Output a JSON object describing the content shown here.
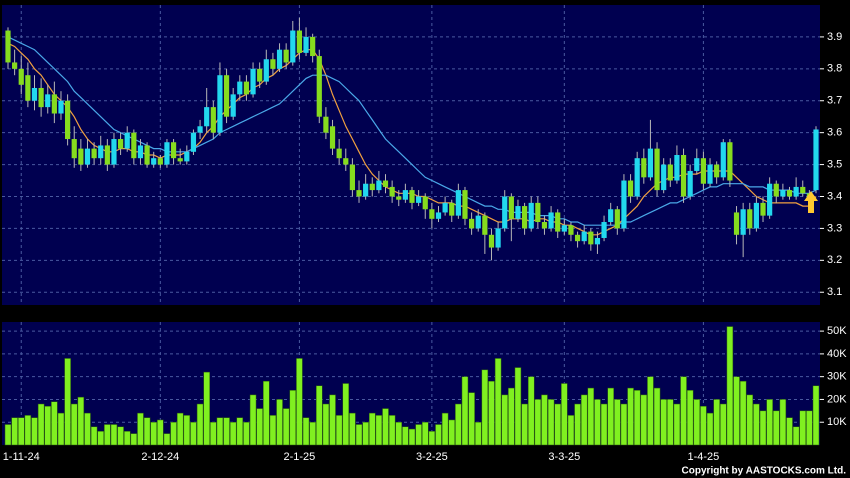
{
  "chart_data": {
    "type": "candlestick",
    "up_color": "#22d8ee",
    "down_color": "#86dc1e",
    "grid": true,
    "categories": [
      null,
      null,
      "1-11-24",
      null,
      null,
      null,
      null,
      null,
      null,
      null,
      null,
      null,
      null,
      null,
      null,
      null,
      null,
      null,
      null,
      null,
      null,
      null,
      null,
      "2-12-24",
      null,
      null,
      null,
      null,
      null,
      null,
      null,
      null,
      null,
      null,
      null,
      null,
      null,
      null,
      null,
      null,
      null,
      null,
      null,
      null,
      "2-1-25",
      null,
      null,
      null,
      null,
      null,
      null,
      null,
      null,
      null,
      null,
      null,
      null,
      null,
      null,
      null,
      null,
      null,
      null,
      null,
      "3-2-25",
      null,
      null,
      null,
      null,
      null,
      null,
      null,
      null,
      null,
      null,
      null,
      null,
      null,
      null,
      null,
      null,
      null,
      null,
      null,
      "3-3-25",
      null,
      null,
      null,
      null,
      null,
      null,
      null,
      null,
      null,
      null,
      null,
      null,
      null,
      null,
      null,
      null,
      null,
      null,
      null,
      null,
      "1-4-25",
      null,
      null,
      null,
      null,
      null,
      null,
      null,
      null,
      null,
      null,
      null,
      null,
      null,
      null,
      null,
      null,
      null
    ],
    "ohlc": [
      [
        3.92,
        3.93,
        3.8,
        3.82
      ],
      [
        3.82,
        3.86,
        3.78,
        3.8
      ],
      [
        3.8,
        3.84,
        3.72,
        3.75
      ],
      [
        3.78,
        3.82,
        3.68,
        3.7
      ],
      [
        3.7,
        3.78,
        3.67,
        3.74
      ],
      [
        3.74,
        3.77,
        3.65,
        3.68
      ],
      [
        3.68,
        3.75,
        3.66,
        3.72
      ],
      [
        3.72,
        3.76,
        3.63,
        3.66
      ],
      [
        3.66,
        3.73,
        3.64,
        3.7
      ],
      [
        3.7,
        3.72,
        3.56,
        3.58
      ],
      [
        3.58,
        3.62,
        3.49,
        3.52
      ],
      [
        3.55,
        3.58,
        3.48,
        3.5
      ],
      [
        3.5,
        3.58,
        3.49,
        3.55
      ],
      [
        3.55,
        3.57,
        3.5,
        3.52
      ],
      [
        3.52,
        3.59,
        3.5,
        3.56
      ],
      [
        3.56,
        3.58,
        3.48,
        3.5
      ],
      [
        3.5,
        3.6,
        3.49,
        3.58
      ],
      [
        3.58,
        3.6,
        3.53,
        3.55
      ],
      [
        3.55,
        3.62,
        3.54,
        3.6
      ],
      [
        3.6,
        3.61,
        3.5,
        3.52
      ],
      [
        3.52,
        3.58,
        3.5,
        3.56
      ],
      [
        3.56,
        3.57,
        3.49,
        3.5
      ],
      [
        3.5,
        3.54,
        3.49,
        3.52
      ],
      [
        3.52,
        3.53,
        3.49,
        3.5
      ],
      [
        3.5,
        3.58,
        3.49,
        3.57
      ],
      [
        3.57,
        3.58,
        3.5,
        3.52
      ],
      [
        3.52,
        3.55,
        3.5,
        3.51
      ],
      [
        3.51,
        3.56,
        3.5,
        3.54
      ],
      [
        3.54,
        3.61,
        3.53,
        3.6
      ],
      [
        3.6,
        3.64,
        3.58,
        3.62
      ],
      [
        3.62,
        3.74,
        3.6,
        3.68
      ],
      [
        3.68,
        3.7,
        3.58,
        3.6
      ],
      [
        3.6,
        3.82,
        3.59,
        3.78
      ],
      [
        3.78,
        3.8,
        3.63,
        3.65
      ],
      [
        3.65,
        3.74,
        3.64,
        3.72
      ],
      [
        3.72,
        3.78,
        3.7,
        3.76
      ],
      [
        3.76,
        3.78,
        3.7,
        3.72
      ],
      [
        3.72,
        3.82,
        3.71,
        3.8
      ],
      [
        3.8,
        3.82,
        3.74,
        3.76
      ],
      [
        3.76,
        3.86,
        3.75,
        3.83
      ],
      [
        3.83,
        3.85,
        3.78,
        3.8
      ],
      [
        3.8,
        3.88,
        3.79,
        3.86
      ],
      [
        3.86,
        3.88,
        3.8,
        3.82
      ],
      [
        3.82,
        3.95,
        3.81,
        3.92
      ],
      [
        3.92,
        3.96,
        3.83,
        3.85
      ],
      [
        3.85,
        3.93,
        3.84,
        3.9
      ],
      [
        3.9,
        3.91,
        3.82,
        3.84
      ],
      [
        3.84,
        3.86,
        3.63,
        3.65
      ],
      [
        3.65,
        3.68,
        3.58,
        3.6
      ],
      [
        3.62,
        3.64,
        3.53,
        3.55
      ],
      [
        3.55,
        3.58,
        3.5,
        3.52
      ],
      [
        3.52,
        3.55,
        3.48,
        3.5
      ],
      [
        3.5,
        3.52,
        3.4,
        3.42
      ],
      [
        3.42,
        3.45,
        3.38,
        3.4
      ],
      [
        3.4,
        3.47,
        3.39,
        3.44
      ],
      [
        3.44,
        3.46,
        3.4,
        3.42
      ],
      [
        3.42,
        3.48,
        3.41,
        3.45
      ],
      [
        3.45,
        3.47,
        3.41,
        3.43
      ],
      [
        3.43,
        3.45,
        3.38,
        3.4
      ],
      [
        3.4,
        3.42,
        3.37,
        3.39
      ],
      [
        3.39,
        3.44,
        3.38,
        3.42
      ],
      [
        3.42,
        3.43,
        3.36,
        3.38
      ],
      [
        3.38,
        3.42,
        3.37,
        3.4
      ],
      [
        3.4,
        3.41,
        3.33,
        3.36
      ],
      [
        3.36,
        3.38,
        3.3,
        3.33
      ],
      [
        3.33,
        3.37,
        3.32,
        3.35
      ],
      [
        3.35,
        3.4,
        3.34,
        3.38
      ],
      [
        3.38,
        3.39,
        3.32,
        3.34
      ],
      [
        3.34,
        3.44,
        3.33,
        3.42
      ],
      [
        3.42,
        3.43,
        3.31,
        3.33
      ],
      [
        3.33,
        3.35,
        3.28,
        3.3
      ],
      [
        3.3,
        3.36,
        3.29,
        3.34
      ],
      [
        3.34,
        3.35,
        3.22,
        3.28
      ],
      [
        3.28,
        3.3,
        3.2,
        3.24
      ],
      [
        3.24,
        3.32,
        3.23,
        3.3
      ],
      [
        3.3,
        3.42,
        3.29,
        3.4
      ],
      [
        3.4,
        3.41,
        3.26,
        3.33
      ],
      [
        3.33,
        3.39,
        3.32,
        3.37
      ],
      [
        3.37,
        3.38,
        3.28,
        3.3
      ],
      [
        3.3,
        3.4,
        3.29,
        3.38
      ],
      [
        3.38,
        3.4,
        3.3,
        3.32
      ],
      [
        3.32,
        3.34,
        3.28,
        3.3
      ],
      [
        3.3,
        3.37,
        3.29,
        3.35
      ],
      [
        3.35,
        3.36,
        3.27,
        3.29
      ],
      [
        3.29,
        3.33,
        3.28,
        3.31
      ],
      [
        3.31,
        3.32,
        3.26,
        3.28
      ],
      [
        3.28,
        3.29,
        3.24,
        3.26
      ],
      [
        3.26,
        3.31,
        3.25,
        3.29
      ],
      [
        3.29,
        3.3,
        3.23,
        3.25
      ],
      [
        3.25,
        3.29,
        3.22,
        3.27
      ],
      [
        3.27,
        3.34,
        3.26,
        3.32
      ],
      [
        3.32,
        3.38,
        3.31,
        3.36
      ],
      [
        3.36,
        3.37,
        3.28,
        3.3
      ],
      [
        3.3,
        3.47,
        3.29,
        3.45
      ],
      [
        3.45,
        3.47,
        3.38,
        3.4
      ],
      [
        3.4,
        3.54,
        3.39,
        3.52
      ],
      [
        3.52,
        3.55,
        3.44,
        3.46
      ],
      [
        3.46,
        3.64,
        3.45,
        3.55
      ],
      [
        3.55,
        3.57,
        3.4,
        3.42
      ],
      [
        3.42,
        3.52,
        3.41,
        3.5
      ],
      [
        3.5,
        3.52,
        3.43,
        3.45
      ],
      [
        3.45,
        3.56,
        3.44,
        3.53
      ],
      [
        3.53,
        3.55,
        3.38,
        3.4
      ],
      [
        3.4,
        3.5,
        3.39,
        3.48
      ],
      [
        3.48,
        3.55,
        3.47,
        3.52
      ],
      [
        3.52,
        3.54,
        3.42,
        3.44
      ],
      [
        3.44,
        3.52,
        3.43,
        3.5
      ],
      [
        3.5,
        3.51,
        3.44,
        3.46
      ],
      [
        3.46,
        3.58,
        3.45,
        3.57
      ],
      [
        3.57,
        3.58,
        3.43,
        3.45
      ],
      [
        3.35,
        3.37,
        3.25,
        3.28
      ],
      [
        3.28,
        3.38,
        3.21,
        3.36
      ],
      [
        3.36,
        3.38,
        3.28,
        3.3
      ],
      [
        3.3,
        3.4,
        3.29,
        3.38
      ],
      [
        3.38,
        3.4,
        3.32,
        3.34
      ],
      [
        3.34,
        3.46,
        3.33,
        3.44
      ],
      [
        3.44,
        3.45,
        3.38,
        3.4
      ],
      [
        3.4,
        3.44,
        3.39,
        3.42
      ],
      [
        3.42,
        3.43,
        3.39,
        3.4
      ],
      [
        3.4,
        3.46,
        3.39,
        3.43
      ],
      [
        3.43,
        3.45,
        3.4,
        3.41
      ],
      [
        3.41,
        3.42,
        3.38,
        3.4
      ],
      [
        3.42,
        3.62,
        3.41,
        3.61
      ]
    ],
    "series": [
      {
        "color": "#f0a040",
        "values": [
          3.88,
          3.87,
          3.85,
          3.83,
          3.8,
          3.78,
          3.75,
          3.72,
          3.7,
          3.68,
          3.65,
          3.61,
          3.58,
          3.56,
          3.55,
          3.54,
          3.54,
          3.55,
          3.55,
          3.54,
          3.54,
          3.53,
          3.53,
          3.52,
          3.53,
          3.53,
          3.53,
          3.54,
          3.55,
          3.57,
          3.6,
          3.62,
          3.65,
          3.67,
          3.69,
          3.71,
          3.72,
          3.74,
          3.75,
          3.77,
          3.78,
          3.8,
          3.81,
          3.83,
          3.85,
          3.86,
          3.86,
          3.83,
          3.78,
          3.72,
          3.67,
          3.62,
          3.58,
          3.54,
          3.5,
          3.47,
          3.45,
          3.43,
          3.42,
          3.41,
          3.41,
          3.41,
          3.4,
          3.4,
          3.39,
          3.38,
          3.38,
          3.38,
          3.37,
          3.37,
          3.36,
          3.35,
          3.34,
          3.33,
          3.32,
          3.32,
          3.33,
          3.33,
          3.33,
          3.32,
          3.33,
          3.33,
          3.32,
          3.32,
          3.31,
          3.31,
          3.3,
          3.29,
          3.28,
          3.28,
          3.29,
          3.3,
          3.31,
          3.33,
          3.35,
          3.37,
          3.4,
          3.42,
          3.44,
          3.45,
          3.46,
          3.46,
          3.47,
          3.47,
          3.47,
          3.48,
          3.48,
          3.48,
          3.48,
          3.48,
          3.46,
          3.44,
          3.42,
          3.4,
          3.39,
          3.38,
          3.38,
          3.38,
          3.38,
          3.38,
          3.37,
          3.37,
          3.4
        ]
      },
      {
        "color": "#4aa8e8",
        "values": [
          3.9,
          3.89,
          3.88,
          3.87,
          3.86,
          3.84,
          3.82,
          3.8,
          3.78,
          3.76,
          3.73,
          3.71,
          3.69,
          3.67,
          3.65,
          3.63,
          3.61,
          3.6,
          3.59,
          3.58,
          3.57,
          3.56,
          3.55,
          3.55,
          3.54,
          3.54,
          3.54,
          3.54,
          3.55,
          3.56,
          3.57,
          3.58,
          3.6,
          3.61,
          3.62,
          3.63,
          3.64,
          3.65,
          3.66,
          3.67,
          3.68,
          3.69,
          3.71,
          3.73,
          3.75,
          3.77,
          3.78,
          3.78,
          3.78,
          3.77,
          3.76,
          3.74,
          3.72,
          3.7,
          3.67,
          3.64,
          3.61,
          3.58,
          3.56,
          3.54,
          3.52,
          3.5,
          3.48,
          3.46,
          3.45,
          3.44,
          3.43,
          3.42,
          3.41,
          3.4,
          3.39,
          3.38,
          3.37,
          3.37,
          3.36,
          3.36,
          3.35,
          3.35,
          3.35,
          3.35,
          3.34,
          3.34,
          3.34,
          3.33,
          3.33,
          3.32,
          3.32,
          3.31,
          3.31,
          3.31,
          3.31,
          3.31,
          3.31,
          3.32,
          3.32,
          3.33,
          3.34,
          3.35,
          3.36,
          3.37,
          3.38,
          3.38,
          3.39,
          3.4,
          3.41,
          3.42,
          3.43,
          3.43,
          3.44,
          3.44,
          3.44,
          3.44,
          3.43,
          3.43,
          3.43,
          3.42,
          3.42,
          3.42,
          3.42,
          3.41,
          3.41,
          3.41,
          3.42
        ]
      }
    ],
    "ylim": [
      3.06,
      4.0
    ],
    "yticks": [
      3.1,
      3.2,
      3.3,
      3.4,
      3.5,
      3.6,
      3.7,
      3.8,
      3.9
    ],
    "volume": {
      "color": "#80f020",
      "values": [
        9000,
        12000,
        12000,
        13000,
        12000,
        18000,
        17000,
        19000,
        14000,
        38000,
        18000,
        21000,
        14000,
        8000,
        6000,
        9000,
        9000,
        8000,
        6000,
        5000,
        14000,
        12000,
        10000,
        11000,
        5000,
        10000,
        14000,
        13000,
        10000,
        18000,
        32000,
        10000,
        12000,
        12000,
        10000,
        12000,
        10000,
        22000,
        16000,
        28000,
        13000,
        20000,
        16000,
        24000,
        38000,
        12000,
        10000,
        26000,
        18000,
        22000,
        13000,
        27000,
        14000,
        9000,
        10000,
        14000,
        13000,
        16000,
        13000,
        10000,
        8000,
        7000,
        9000,
        10000,
        6000,
        9000,
        14000,
        11000,
        18000,
        30000,
        23000,
        10000,
        33000,
        28000,
        38000,
        22000,
        25000,
        34000,
        18000,
        30000,
        20000,
        22000,
        20000,
        18000,
        27000,
        13000,
        18000,
        22000,
        25000,
        20000,
        18000,
        25000,
        20000,
        18000,
        25000,
        24000,
        22000,
        30000,
        25000,
        20000,
        20000,
        18000,
        30000,
        24000,
        20000,
        17000,
        14000,
        20000,
        18000,
        52000,
        30000,
        28000,
        22000,
        18000,
        15000,
        20000,
        15000,
        20000,
        12000,
        8000,
        15000,
        15000,
        26000
      ],
      "ylim": [
        0,
        54000
      ],
      "yticks": [
        {
          "value": 10000,
          "label": "10K"
        },
        {
          "value": 20000,
          "label": "20K"
        },
        {
          "value": 30000,
          "label": "30K"
        },
        {
          "value": 40000,
          "label": "40K"
        },
        {
          "value": 50000,
          "label": "50K"
        }
      ]
    },
    "copyright": "Copyright by AASTOCKS.com Ltd."
  }
}
